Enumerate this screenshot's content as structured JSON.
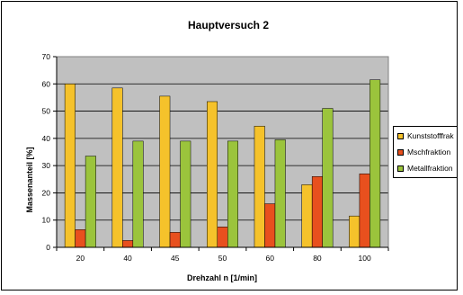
{
  "chart_data": {
    "type": "bar",
    "title": "Hauptversuch 2",
    "xlabel": "Drehzahl n [1/min]",
    "ylabel": "Massenanteil [%]",
    "ylim": [
      0,
      70
    ],
    "yticks": [
      0,
      10,
      20,
      30,
      40,
      50,
      60,
      70
    ],
    "grid": true,
    "legend_position": "right",
    "categories": [
      "20",
      "40",
      "45",
      "50",
      "60",
      "80",
      "100"
    ],
    "series": [
      {
        "name": "Kunststofffrak",
        "color": "#F5C22B",
        "values": [
          60,
          58.5,
          55.5,
          53.5,
          44.5,
          23,
          11.5
        ]
      },
      {
        "name": "Mschfraktion",
        "color": "#E8501E",
        "values": [
          6.5,
          2.5,
          5.5,
          7.5,
          16,
          26,
          27
        ]
      },
      {
        "name": "Metallfraktion",
        "color": "#9BC43C",
        "values": [
          33.5,
          39,
          39,
          39,
          39.5,
          51,
          61.5
        ]
      }
    ],
    "plot_background": "#C0C0C0"
  }
}
